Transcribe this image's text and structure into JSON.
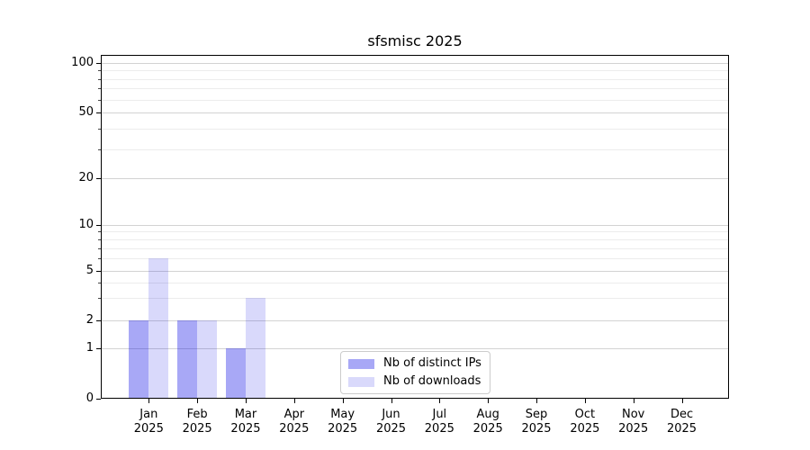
{
  "chart_data": {
    "type": "bar",
    "title": "sfsmisc 2025",
    "categories": [
      "Jan",
      "Feb",
      "Mar",
      "Apr",
      "May",
      "Jun",
      "Jul",
      "Aug",
      "Sep",
      "Oct",
      "Nov",
      "Dec"
    ],
    "x_tick_year": "2025",
    "series": [
      {
        "name": "Nb of distinct IPs",
        "color": "rgba(0,0,230,0.34)",
        "values": [
          2,
          2,
          1,
          0,
          0,
          0,
          0,
          0,
          0,
          0,
          0,
          0
        ]
      },
      {
        "name": "Nb of downloads",
        "color": "rgba(0,0,230,0.15)",
        "values": [
          6,
          2,
          3,
          0,
          0,
          0,
          0,
          0,
          0,
          0,
          0,
          0
        ]
      }
    ],
    "y_axis": {
      "scale": "log-like (0,1 linear segment, log above 1)",
      "major_ticks": [
        0,
        1,
        2,
        5,
        10,
        20,
        50,
        100
      ],
      "minor_ticks": [
        3,
        4,
        6,
        7,
        8,
        9,
        30,
        40,
        60,
        70,
        80,
        90
      ],
      "range_top": 115
    },
    "legend": {
      "position": "lower center",
      "entries": [
        "Nb of distinct IPs",
        "Nb of downloads"
      ]
    },
    "grid": {
      "major_color": "#d3d3d3",
      "minor_color": "#ececec",
      "enabled": true
    },
    "colors": {
      "axis": "#000000",
      "text": "#000000",
      "background": "#ffffff"
    }
  }
}
